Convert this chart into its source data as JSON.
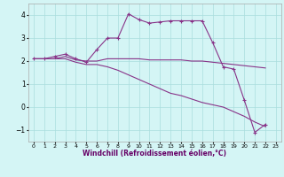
{
  "xlabel": "Windchill (Refroidissement éolien,°C)",
  "x": [
    0,
    1,
    2,
    3,
    4,
    5,
    6,
    7,
    8,
    9,
    10,
    11,
    12,
    13,
    14,
    15,
    16,
    17,
    18,
    19,
    20,
    21,
    22,
    23
  ],
  "line1": [
    2.1,
    2.1,
    2.2,
    2.3,
    2.1,
    1.95,
    2.5,
    3.0,
    3.0,
    4.05,
    3.8,
    3.65,
    3.7,
    3.75,
    3.75,
    3.75,
    3.75,
    2.8,
    1.75,
    1.65,
    0.3,
    -1.1,
    -0.75,
    null
  ],
  "line2": [
    2.1,
    2.1,
    2.1,
    2.2,
    2.05,
    2.0,
    2.0,
    2.1,
    2.1,
    2.1,
    2.1,
    2.05,
    2.05,
    2.05,
    2.05,
    2.0,
    2.0,
    1.95,
    1.9,
    1.85,
    1.8,
    1.75,
    1.7,
    null
  ],
  "line3": [
    2.1,
    2.1,
    2.1,
    2.1,
    1.95,
    1.85,
    1.85,
    1.75,
    1.6,
    1.4,
    1.2,
    1.0,
    0.8,
    0.6,
    0.5,
    0.35,
    0.2,
    0.1,
    0.0,
    -0.2,
    -0.4,
    -0.65,
    -0.85,
    null
  ],
  "bg_color": "#d4f5f5",
  "grid_color": "#aadddd",
  "line_color": "#883388",
  "ylim": [
    -1.5,
    4.5
  ],
  "yticks": [
    -1,
    0,
    1,
    2,
    3,
    4
  ],
  "xlim": [
    -0.5,
    23.5
  ],
  "xticks": [
    0,
    1,
    2,
    3,
    4,
    5,
    6,
    7,
    8,
    9,
    10,
    11,
    12,
    13,
    14,
    15,
    16,
    17,
    18,
    19,
    20,
    21,
    22,
    23
  ]
}
